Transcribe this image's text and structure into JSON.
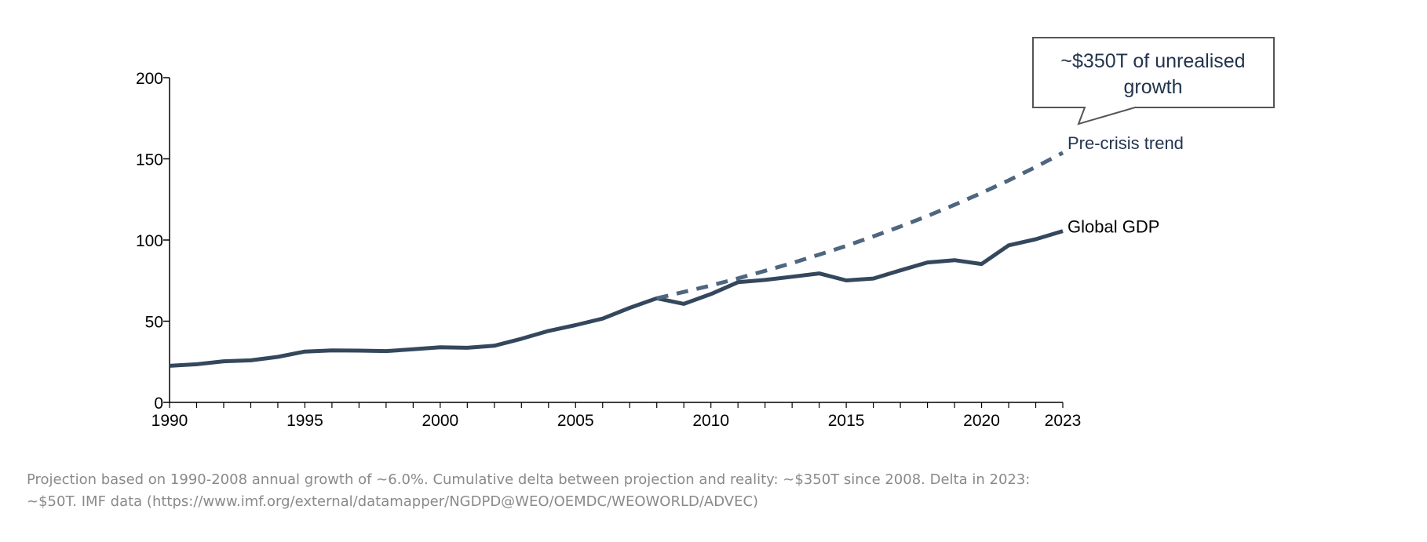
{
  "chart_data": {
    "type": "line",
    "x": [
      1990,
      1991,
      1992,
      1993,
      1994,
      1995,
      1996,
      1997,
      1998,
      1999,
      2000,
      2001,
      2002,
      2003,
      2004,
      2005,
      2006,
      2007,
      2008,
      2009,
      2010,
      2011,
      2012,
      2013,
      2014,
      2015,
      2016,
      2017,
      2018,
      2019,
      2020,
      2021,
      2022,
      2023
    ],
    "series": [
      {
        "name": "Global GDP",
        "style": "solid",
        "color": "#34475c",
        "x": [
          1990,
          1991,
          1992,
          1993,
          1994,
          1995,
          1996,
          1997,
          1998,
          1999,
          2000,
          2001,
          2002,
          2003,
          2004,
          2005,
          2006,
          2007,
          2008,
          2009,
          2010,
          2011,
          2012,
          2013,
          2014,
          2015,
          2016,
          2017,
          2018,
          2019,
          2020,
          2021,
          2022,
          2023
        ],
        "values": [
          22.5,
          23.5,
          25.3,
          25.9,
          28,
          31.3,
          32,
          31.9,
          31.6,
          32.7,
          33.9,
          33.6,
          34.9,
          39.2,
          44,
          47.6,
          51.6,
          58.2,
          64.1,
          60.7,
          66.7,
          74,
          75.4,
          77.4,
          79.4,
          75.1,
          76.3,
          81.3,
          86.2,
          87.6,
          85.2,
          96.7,
          100.5,
          105.5
        ]
      },
      {
        "name": "Pre-crisis trend",
        "style": "dashed",
        "color": "#4f6680",
        "x": [
          2008,
          2009,
          2010,
          2011,
          2012,
          2013,
          2014,
          2015,
          2016,
          2017,
          2018,
          2019,
          2020,
          2021,
          2022,
          2023
        ],
        "values": [
          64.1,
          68,
          72,
          76.4,
          81,
          85.8,
          91,
          96.4,
          102.2,
          108.3,
          114.8,
          121.7,
          129,
          136.7,
          145,
          153.7
        ]
      }
    ],
    "title": "",
    "xlabel": "",
    "ylabel": "",
    "xlim": [
      1990,
      2023
    ],
    "ylim": [
      0,
      200
    ],
    "yticks": [
      0,
      50,
      100,
      150,
      200
    ],
    "xticks_labeled": [
      1990,
      1995,
      2000,
      2005,
      2010,
      2015,
      2020,
      2023
    ],
    "grid": false,
    "legend": "none (series labeled inline at line ends)",
    "annotations": [
      {
        "text_lines": [
          "~$350T of unrealised",
          "growth"
        ],
        "style": "callout box pointing at the gap between the trend and the actual series"
      }
    ]
  },
  "footnote": {
    "line1": "Projection based on 1990-2008 annual growth of ~6.0%. Cumulative delta between projection and reality: ~$350T since 2008. Delta in 2023:",
    "line2": "~$50T. IMF data (https://www.imf.org/external/datamapper/NGDPD@WEO/OEMDC/WEOWORLD/ADVEC)"
  },
  "colors": {
    "axis": "#000000",
    "actual_line": "#34475c",
    "trend_line": "#4f6680",
    "trend_label": "#22344d",
    "callout_border": "#555555",
    "footnote_text": "#8a8a8a"
  }
}
